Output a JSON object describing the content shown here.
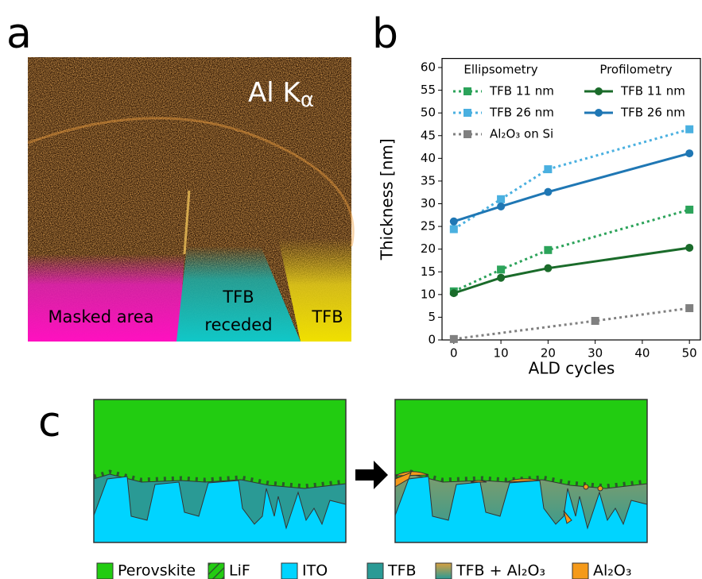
{
  "panel_labels": [
    "a",
    "b",
    "c"
  ],
  "image_panel": {
    "symbol": "Al K",
    "subscript": "α",
    "regions": [
      [
        "Masked area"
      ],
      [
        "TFB",
        "receded"
      ],
      [
        "TFB"
      ]
    ]
  },
  "chart_data": {
    "type": "line",
    "xlabel": "ALD cycles",
    "ylabel": "Thickness [nm]",
    "legend_titles": [
      "Ellipsometry",
      "Profilometry"
    ],
    "xlim": [
      -2.5,
      52.5
    ],
    "xticks": [
      0,
      10,
      20,
      30,
      40,
      50
    ],
    "ylim": [
      0,
      62
    ],
    "yticks": [
      0,
      5,
      10,
      15,
      20,
      25,
      30,
      35,
      40,
      45,
      50,
      55,
      60
    ],
    "series": [
      {
        "name": "TFB 11 nm",
        "color": "#2ca35a",
        "style": "dotted",
        "marker": "square",
        "x": [
          0,
          10,
          20,
          50
        ],
        "values": [
          10.7,
          15.5,
          19.8,
          28.7
        ]
      },
      {
        "name": "TFB 26 nm",
        "color": "#4ab0e0",
        "style": "dotted",
        "marker": "square",
        "x": [
          0,
          10,
          20,
          50
        ],
        "values": [
          24.4,
          31,
          37.6,
          46.4
        ]
      },
      {
        "name": "Al₂O₃ on Si",
        "color": "#808080",
        "style": "dotted",
        "marker": "square",
        "x": [
          0,
          30,
          50
        ],
        "values": [
          0.2,
          4.2,
          7
        ]
      },
      {
        "name": "TFB 11 nm",
        "color": "#1a6b2a",
        "style": "solid",
        "marker": "circle",
        "x": [
          0,
          10,
          20,
          50
        ],
        "values": [
          10.3,
          13.7,
          15.8,
          20.3
        ]
      },
      {
        "name": "TFB 26 nm",
        "color": "#1f77b4",
        "style": "solid",
        "marker": "circle",
        "x": [
          0,
          10,
          20,
          50
        ],
        "values": [
          26.1,
          29.4,
          32.6,
          41.1
        ]
      }
    ]
  },
  "schematic": {
    "legend": [
      "Perovskite",
      "LiF",
      "ITO",
      "TFB",
      "TFB + Al₂O₃",
      "Al₂O₃"
    ]
  }
}
